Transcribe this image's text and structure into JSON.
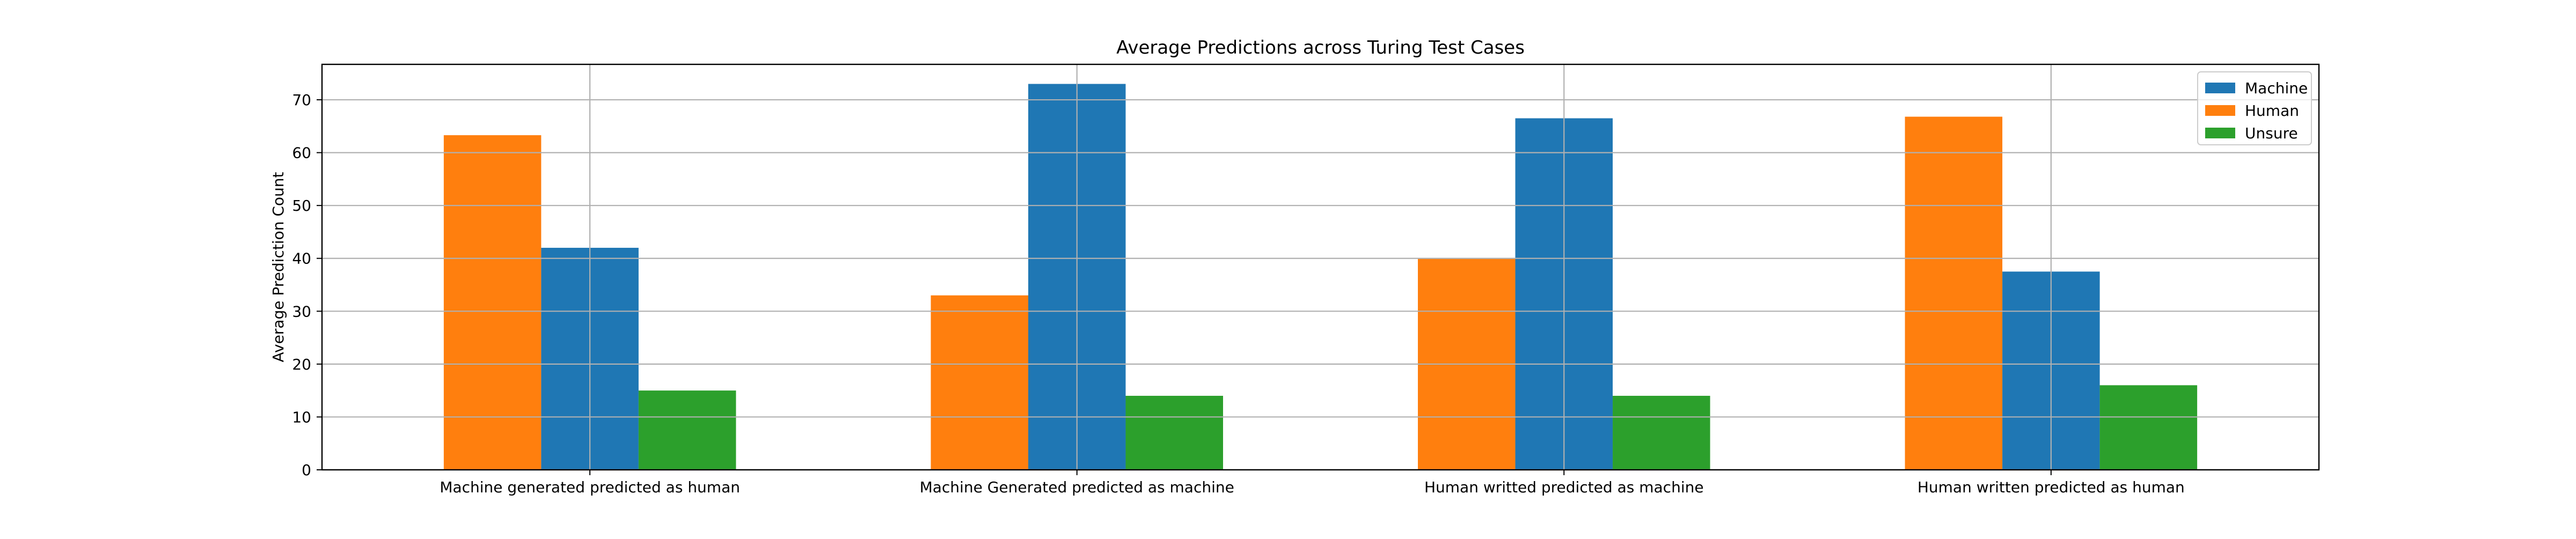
{
  "chart_data": {
    "type": "bar",
    "title": "Average Predictions across Turing Test Cases",
    "xlabel": "",
    "ylabel": "Average Prediction Count",
    "categories": [
      "Machine generated predicted as human",
      "Machine Generated predicted as machine",
      "Human writted predicted as machine",
      "Human written predicted as human"
    ],
    "series": [
      {
        "name": "Human",
        "color": "#ff7f0e",
        "values": [
          63.3,
          33.0,
          40.0,
          66.8
        ]
      },
      {
        "name": "Machine",
        "color": "#1f77b4",
        "values": [
          42.0,
          73.0,
          66.5,
          37.5
        ]
      },
      {
        "name": "Unsure",
        "color": "#2ca02c",
        "values": [
          15.0,
          14.0,
          14.0,
          16.0
        ]
      }
    ],
    "legend_order": [
      "Machine",
      "Human",
      "Unsure"
    ],
    "ylim": [
      0,
      76.7
    ],
    "yticks": [
      0,
      10,
      20,
      30,
      40,
      50,
      60,
      70
    ],
    "grid": true,
    "legend_position": "top-right"
  }
}
